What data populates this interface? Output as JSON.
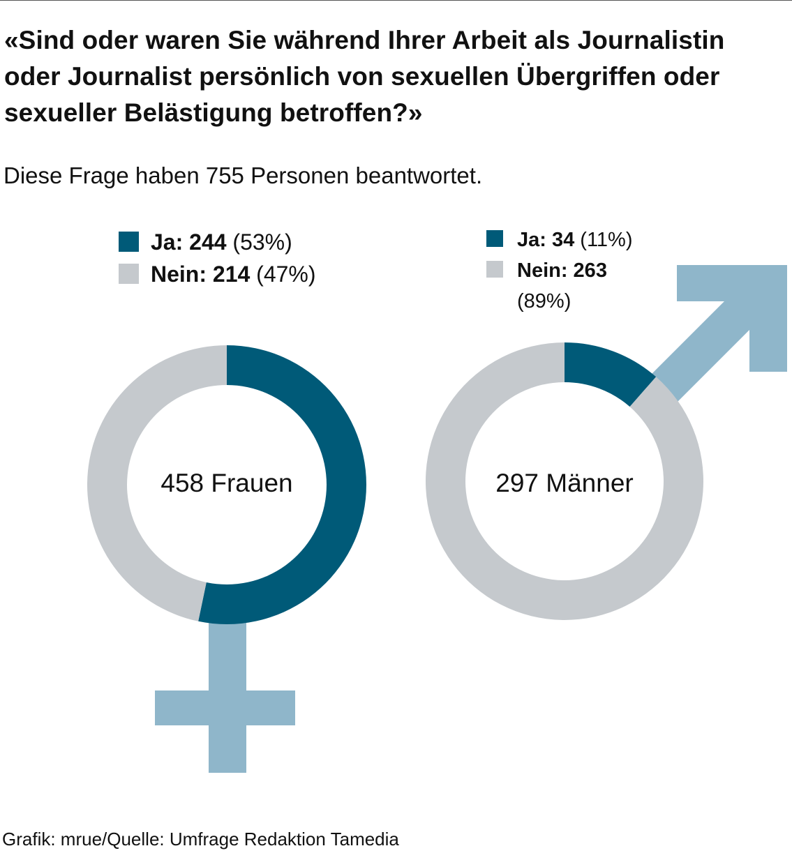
{
  "title": "«Sind oder waren Sie während Ihrer Arbeit als Journalistin oder Journalist persönlich von sexuellen Übergriffen oder sexueller Belästigung betroffen?»",
  "subtitle": "Diese Frage haben 755 Personen beantwortet.",
  "source": "Grafik: mrue/Quelle: Umfrage Redaktion Tamedia",
  "colors": {
    "ja": "#005a78",
    "nein": "#c5c9cd",
    "symbol": "#8fb6ca"
  },
  "icons": {
    "female_symbol": "venus-symbol",
    "male_symbol": "mars-symbol"
  },
  "legend": {
    "women": {
      "ja_label": "Ja: 244",
      "ja_pct": "(53%)",
      "nein_label": "Nein: 214",
      "nein_pct": "(47%)"
    },
    "men": {
      "ja_label": "Ja: 34",
      "ja_pct": "(11%)",
      "nein_label": "Nein: 263",
      "nein_pct": "(89%)"
    }
  },
  "chart_data": [
    {
      "type": "pie",
      "donut": true,
      "center_label": "458 Frauen",
      "categories": [
        "Ja",
        "Nein"
      ],
      "values": [
        244,
        214
      ],
      "percentages": [
        53,
        47
      ]
    },
    {
      "type": "pie",
      "donut": true,
      "center_label": "297 Männer",
      "categories": [
        "Ja",
        "Nein"
      ],
      "values": [
        34,
        263
      ],
      "percentages": [
        11,
        89
      ]
    }
  ]
}
